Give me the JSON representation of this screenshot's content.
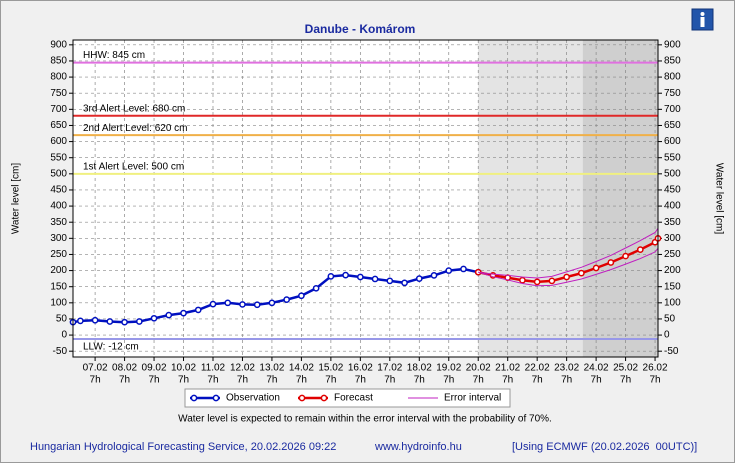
{
  "chart_data": {
    "type": "line",
    "title": "Danube - Komárom",
    "y_label": "Water level [cm]",
    "ylim": [
      -68,
      915
    ],
    "yticks": [
      -50,
      0,
      50,
      100,
      150,
      200,
      250,
      300,
      350,
      400,
      450,
      500,
      550,
      600,
      650,
      700,
      750,
      800,
      850,
      900
    ],
    "xlim": [
      -0.75,
      19.1
    ],
    "xticks": [
      {
        "value": 0,
        "label": "07.02"
      },
      {
        "value": 1,
        "label": "08.02"
      },
      {
        "value": 2,
        "label": "09.02"
      },
      {
        "value": 3,
        "label": "10.02"
      },
      {
        "value": 4,
        "label": "11.02"
      },
      {
        "value": 5,
        "label": "12.02"
      },
      {
        "value": 6,
        "label": "13.02"
      },
      {
        "value": 7,
        "label": "14.02"
      },
      {
        "value": 8,
        "label": "15.02"
      },
      {
        "value": 9,
        "label": "16.02"
      },
      {
        "value": 10,
        "label": "17.02"
      },
      {
        "value": 11,
        "label": "18.02"
      },
      {
        "value": 12,
        "label": "19.02"
      },
      {
        "value": 13,
        "label": "20.02"
      },
      {
        "value": 14,
        "label": "21.02"
      },
      {
        "value": 15,
        "label": "22.02"
      },
      {
        "value": 16,
        "label": "23.02"
      },
      {
        "value": 17,
        "label": "24.02"
      },
      {
        "value": 18,
        "label": "25.02"
      },
      {
        "value": 19,
        "label": "26.02"
      }
    ],
    "xtick_hour": "7h",
    "grid": true,
    "shaded_regions": [
      {
        "from": 13,
        "to": 19.1,
        "color": "#e4e4e4"
      },
      {
        "from": 16.55,
        "to": 19.1,
        "color": "#cfcfcf"
      }
    ],
    "reference_lines": [
      {
        "label": "HHW: 845 cm",
        "value": 845,
        "color": "#e070e0"
      },
      {
        "label": "3rd Alert Level: 680 cm",
        "value": 680,
        "color": "#e02828"
      },
      {
        "label": "2nd Alert Level: 620 cm",
        "value": 620,
        "color": "#f0b048"
      },
      {
        "label": "1st Alert Level: 500 cm",
        "value": 500,
        "color": "#f0f080"
      },
      {
        "label": "LLW: -12 cm",
        "value": -12,
        "color": "#9898e8"
      }
    ],
    "series": [
      {
        "name": "Observation",
        "color": "#0010c0",
        "x": [
          -0.75,
          -0.5,
          0,
          0.5,
          1,
          1.5,
          2,
          2.5,
          3,
          3.5,
          4,
          4.5,
          5,
          5.5,
          6,
          6.5,
          7,
          7.5,
          8,
          8.5,
          9,
          9.5,
          10,
          10.5,
          11,
          11.5,
          12,
          12.5,
          13
        ],
        "values": [
          40,
          44,
          46,
          42,
          40,
          42,
          52,
          62,
          68,
          78,
          96,
          100,
          95,
          94,
          100,
          110,
          122,
          145,
          182,
          186,
          180,
          174,
          168,
          162,
          175,
          185,
          200,
          205,
          195
        ]
      },
      {
        "name": "Forecast",
        "color": "#e00000",
        "x": [
          13,
          13.5,
          14,
          14.5,
          15,
          15.5,
          16,
          16.5,
          17,
          17.5,
          18,
          18.5,
          19,
          19.1
        ],
        "values": [
          195,
          185,
          178,
          170,
          165,
          168,
          180,
          192,
          208,
          225,
          245,
          265,
          288,
          300
        ]
      },
      {
        "name": "Error interval",
        "color": "#c020c0",
        "x": [
          13,
          13.5,
          14,
          14.5,
          15,
          15.5,
          16,
          16.5,
          17,
          17.5,
          18,
          18.5,
          19,
          19.1
        ],
        "upper": [
          195,
          189,
          185,
          180,
          177,
          182,
          196,
          210,
          228,
          247,
          270,
          293,
          318,
          331
        ],
        "lower": [
          195,
          181,
          171,
          160,
          153,
          154,
          164,
          174,
          188,
          203,
          220,
          237,
          258,
          269
        ]
      }
    ],
    "note": "Water level is expected to remain within the error interval with the probability of 70%.",
    "footer": {
      "left": "Hungarian Hydrological Forecasting Service, 20.02.2026 09:22",
      "center": "www.hydroinfo.hu",
      "right": "[Using ECMWF (20.02.2026  00UTC)]"
    }
  }
}
